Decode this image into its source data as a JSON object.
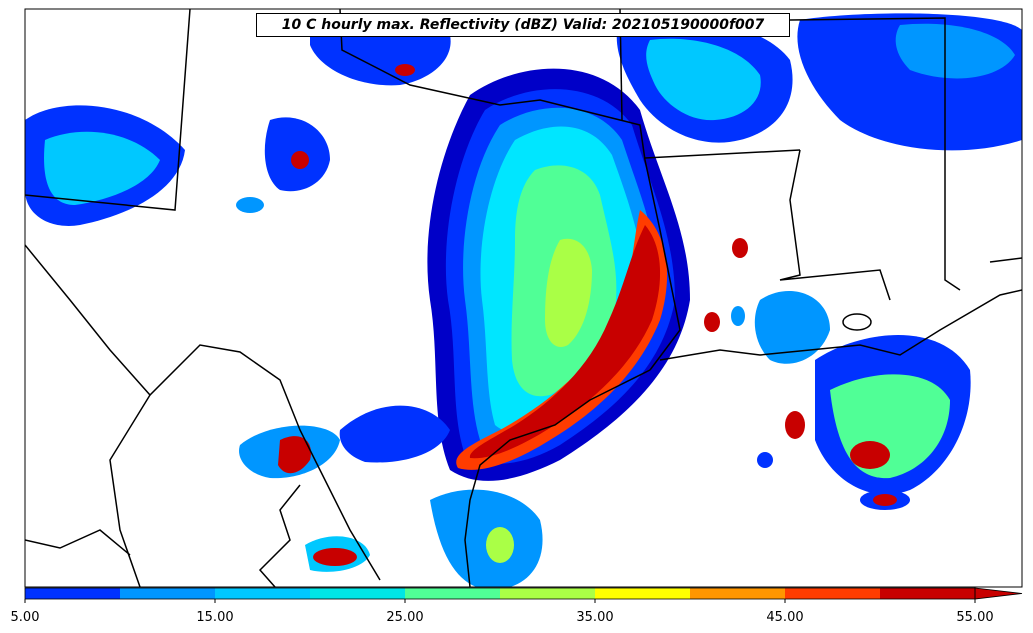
{
  "title": "10 C hourly max. Reflectivity (dBZ) Valid: 202105190000f007",
  "colorbar": {
    "colors": [
      "#0000c8",
      "#0032ff",
      "#0096ff",
      "#00c8ff",
      "#00e6e6",
      "#50ff96",
      "#aaff46",
      "#ffff00",
      "#ff9600",
      "#ff3c00",
      "#c80000"
    ],
    "extend_color": "#c80000",
    "ticks": [
      {
        "label": "5.00"
      },
      {
        "label": "15.00"
      },
      {
        "label": "25.00"
      },
      {
        "label": "35.00"
      },
      {
        "label": "45.00"
      },
      {
        "label": "55.00"
      }
    ]
  },
  "map": {
    "background": "#ffffff",
    "border_color": "#000000"
  }
}
